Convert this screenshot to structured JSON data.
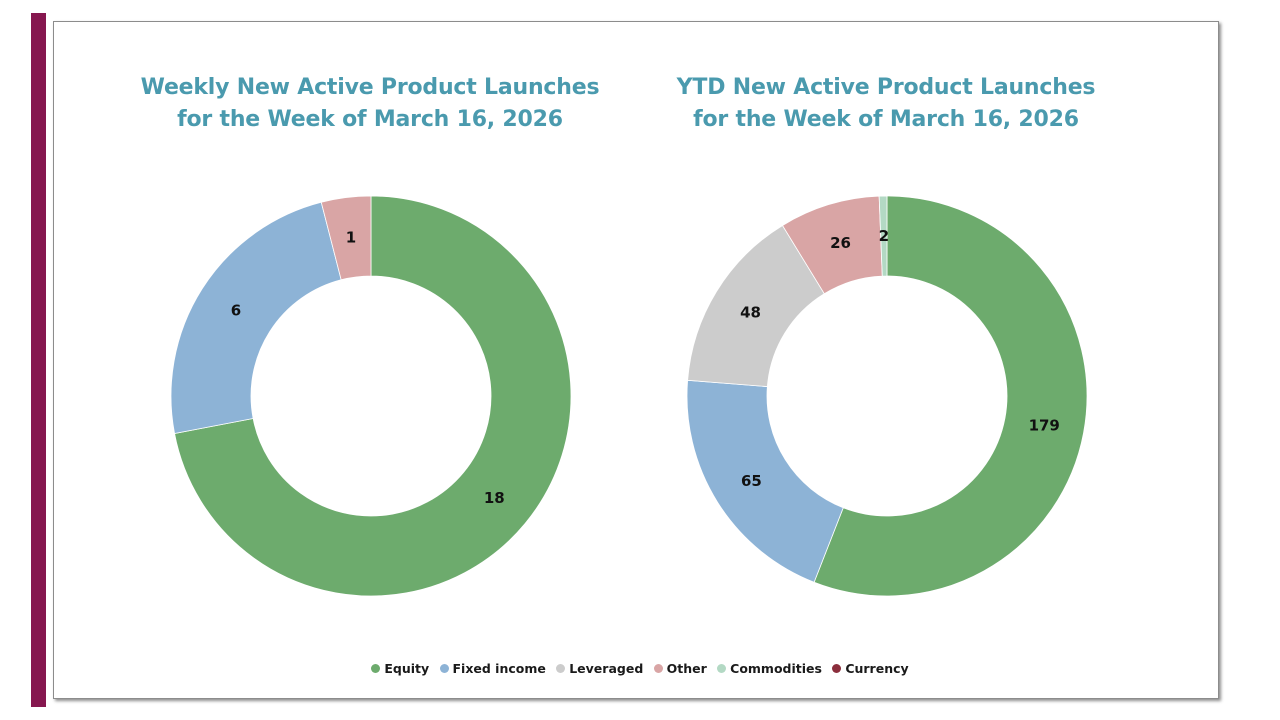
{
  "colors": {
    "accent_bar": "#86174f",
    "title": "#4a9aae"
  },
  "chart_data": [
    {
      "type": "pie",
      "variant": "donut",
      "title": "Weekly New Active Product Launches\nfor the Week of March 16, 2026",
      "title_lines": [
        "Weekly New Active Product Launches",
        "for the Week of March 16, 2026"
      ],
      "categories": [
        "Equity",
        "Fixed income",
        "Leveraged",
        "Other",
        "Commodities",
        "Currency"
      ],
      "values": [
        18,
        6,
        0,
        1,
        0,
        0
      ],
      "data_labels": [
        "18",
        "6",
        "",
        "1",
        "",
        ""
      ],
      "colors": [
        "#6dab6d",
        "#8db3d6",
        "#cccccc",
        "#d9a5a5",
        "#b3d9c4",
        "#8b2e3c"
      ],
      "start_angle_deg": 0,
      "direction": "clockwise"
    },
    {
      "type": "pie",
      "variant": "donut",
      "title": "YTD New Active Product Launches\nfor the Week of March 16, 2026",
      "title_lines": [
        "YTD New Active Product Launches",
        "for the Week of March 16, 2026"
      ],
      "categories": [
        "Equity",
        "Fixed income",
        "Leveraged",
        "Other",
        "Commodities",
        "Currency"
      ],
      "values": [
        179,
        65,
        48,
        26,
        2,
        0
      ],
      "data_labels": [
        "179",
        "65",
        "48",
        "26",
        "2",
        ""
      ],
      "colors": [
        "#6dab6d",
        "#8db3d6",
        "#cccccc",
        "#d9a5a5",
        "#b3d9c4",
        "#8b2e3c"
      ],
      "start_angle_deg": 0,
      "direction": "clockwise"
    }
  ],
  "legend": {
    "placement": "bottom-center",
    "items": [
      {
        "label": "Equity",
        "color": "#6dab6d"
      },
      {
        "label": "Fixed income",
        "color": "#8db3d6"
      },
      {
        "label": "Leveraged",
        "color": "#cccccc"
      },
      {
        "label": "Other",
        "color": "#d9a5a5"
      },
      {
        "label": "Commodities",
        "color": "#b3d9c4"
      },
      {
        "label": "Currency",
        "color": "#8b2e3c"
      }
    ]
  }
}
